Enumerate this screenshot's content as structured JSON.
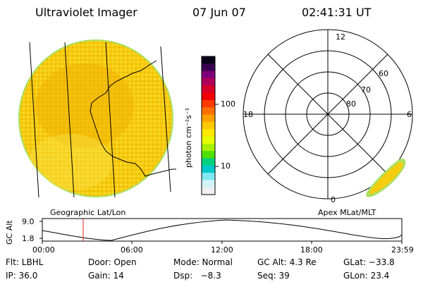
{
  "header": {
    "title": "Ultraviolet Imager",
    "date": "07 Jun 07",
    "time": "02:41:31 UT"
  },
  "colorbar": {
    "unit_label": "photon cm⁻²s⁻¹",
    "ticks": [
      "100",
      "10"
    ],
    "colors": [
      "#0a0018",
      "#3a0050",
      "#80007a",
      "#b0005a",
      "#d80028",
      "#f20000",
      "#ff3a00",
      "#ff7000",
      "#ffa000",
      "#ffc800",
      "#ffe800",
      "#e8ff00",
      "#a8f000",
      "#50e000",
      "#00d080",
      "#00c8c8",
      "#80e8f0",
      "#d0f4f8",
      "#f0f0f0"
    ]
  },
  "left_panel": {
    "label": "Geographic Lat/Lon",
    "disk_color": "#f8d410",
    "disk_dark_color": "#f0b000",
    "rim_color": "#a8e060"
  },
  "right_panel": {
    "label": "Apex MLat/MLT",
    "mlt_labels": {
      "top": "12",
      "left": "18",
      "right": "6",
      "bottom": "0"
    },
    "lat_labels": [
      "60",
      "70",
      "80"
    ]
  },
  "altitude_plot": {
    "ylabel": "GC Alt",
    "yticks": [
      "9.0",
      "1.8"
    ],
    "xticks": [
      "00:00",
      "06:00",
      "12:00",
      "18:00",
      "23:59"
    ],
    "marker_color": "#e02020"
  },
  "info": {
    "flt": "Flt: LBHL",
    "door": "Door: Open",
    "mode": "Mode: Normal",
    "gc_alt": "GC Alt: 4.3 Re",
    "glat": "GLat: −33.8",
    "ip": "IP: 36.0",
    "gain": "Gain: 14",
    "dsp": "Dsp:   −8.3",
    "seq": "Seq: 39",
    "glon": "GLon: 23.4"
  }
}
